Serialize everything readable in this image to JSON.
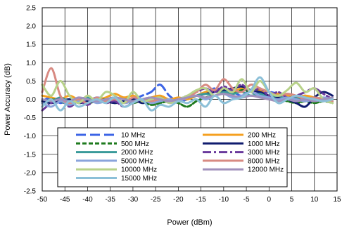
{
  "chart_data": {
    "type": "line",
    "title": "",
    "xlabel": "Power (dBm)",
    "ylabel": "Power Accuracy (dB)",
    "xlim": [
      -50,
      15
    ],
    "ylim": [
      -2.5,
      2.5
    ],
    "xticks": [
      -50,
      -45,
      -40,
      -35,
      -30,
      -25,
      -20,
      -15,
      -10,
      -5,
      0,
      5,
      10,
      15
    ],
    "yticks": [
      -2.5,
      -2.0,
      -1.5,
      -1.0,
      -0.5,
      0.0,
      0.5,
      1.0,
      1.5,
      2.0,
      2.5
    ],
    "xtick_labels": [
      "-50",
      "-45",
      "-40",
      "-35",
      "-30",
      "-25",
      "-20",
      "-15",
      "-10",
      "-5",
      "0",
      "5",
      "10",
      "15"
    ],
    "ytick_labels": [
      "-2.5",
      "-2.0",
      "-1.5",
      "-1.0",
      "-0.5",
      "0.0",
      "0.5",
      "1.0",
      "1.5",
      "2.0",
      "2.5"
    ],
    "grid": "vertical and horizontal",
    "legend_position": "lower-center, inside plot",
    "x": [
      -50,
      -48,
      -46,
      -44,
      -42,
      -40,
      -38,
      -36,
      -34,
      -32,
      -30,
      -28,
      -26,
      -24,
      -22,
      -20,
      -18,
      -16,
      -14,
      -12,
      -10,
      -8,
      -6,
      -4,
      -2,
      0,
      2,
      4,
      6,
      8,
      10,
      12,
      14
    ],
    "series": [
      {
        "name": "10 MHz",
        "color": "#3c64e6",
        "dash": "long-dash",
        "values": [
          -0.05,
          0.05,
          -0.1,
          0.0,
          -0.1,
          -0.05,
          0.05,
          0.0,
          -0.05,
          0.05,
          0.0,
          0.1,
          0.2,
          0.4,
          0.1,
          -0.05,
          0.0,
          0.1,
          0.2,
          0.3,
          0.25,
          0.2,
          0.1,
          0.25,
          0.15,
          0.2,
          0.15,
          0.1,
          0.05,
          0.1,
          0.0,
          0.05,
          0.0
        ]
      },
      {
        "name": "200 MHz",
        "color": "#f5a020",
        "dash": "solid",
        "values": [
          0.1,
          0.05,
          0.0,
          0.1,
          0.0,
          0.05,
          0.0,
          0.05,
          0.15,
          0.05,
          0.1,
          0.0,
          0.05,
          0.1,
          0.0,
          0.05,
          0.0,
          0.1,
          0.2,
          0.25,
          0.15,
          0.2,
          0.3,
          0.2,
          0.25,
          0.1,
          0.15,
          0.1,
          0.05,
          0.1,
          0.05,
          0.0,
          0.05
        ]
      },
      {
        "name": "500 MHz",
        "color": "#1e7a1e",
        "dash": "dashed",
        "values": [
          -0.1,
          0.0,
          -0.05,
          -0.15,
          -0.05,
          -0.1,
          -0.05,
          0.0,
          -0.1,
          -0.05,
          -0.1,
          -0.05,
          -0.15,
          -0.1,
          -0.05,
          -0.1,
          -0.2,
          -0.05,
          0.05,
          0.1,
          0.2,
          0.15,
          0.25,
          0.2,
          0.1,
          0.05,
          0.0,
          -0.05,
          -0.1,
          -0.05,
          -0.1,
          -0.05,
          -0.1
        ]
      },
      {
        "name": "1000 MHz",
        "color": "#101c6e",
        "dash": "solid",
        "values": [
          -0.05,
          -0.1,
          -0.05,
          0.0,
          -0.1,
          -0.05,
          0.0,
          -0.05,
          -0.1,
          -0.05,
          0.0,
          -0.1,
          -0.05,
          0.0,
          -0.05,
          0.0,
          0.05,
          0.1,
          0.15,
          0.2,
          0.25,
          0.3,
          0.35,
          0.25,
          0.2,
          0.1,
          0.05,
          0.0,
          -0.1,
          -0.2,
          0.05,
          0.2,
          0.1
        ]
      },
      {
        "name": "2000 MHz",
        "color": "#3a9a9a",
        "dash": "solid",
        "values": [
          0.0,
          -0.05,
          0.05,
          -0.05,
          0.0,
          0.05,
          -0.05,
          0.0,
          0.05,
          0.0,
          -0.05,
          0.0,
          0.05,
          0.0,
          -0.05,
          0.0,
          0.05,
          0.1,
          0.15,
          0.1,
          0.2,
          0.15,
          0.2,
          0.1,
          0.15,
          0.05,
          0.1,
          0.0,
          0.05,
          0.0,
          0.05,
          0.0,
          -0.05
        ]
      },
      {
        "name": "3000 MHz",
        "color": "#6a3a9c",
        "dash": "dash-dot",
        "values": [
          -0.3,
          -0.1,
          0.0,
          -0.2,
          -0.05,
          -0.15,
          0.0,
          -0.1,
          -0.05,
          -0.2,
          -0.1,
          0.0,
          -0.05,
          0.05,
          -0.1,
          0.0,
          0.1,
          0.2,
          0.3,
          0.2,
          0.35,
          0.25,
          0.4,
          0.2,
          0.3,
          0.1,
          0.2,
          0.05,
          0.1,
          0.2,
          0.3,
          0.15,
          0.0
        ]
      },
      {
        "name": "5000 MHz",
        "color": "#8aa4dc",
        "dash": "solid",
        "values": [
          -0.1,
          -0.2,
          -0.05,
          -0.15,
          -0.05,
          0.0,
          -0.1,
          -0.05,
          0.05,
          -0.1,
          -0.05,
          0.0,
          -0.1,
          -0.05,
          0.0,
          -0.05,
          0.05,
          0.1,
          0.0,
          0.1,
          0.15,
          0.05,
          0.1,
          0.2,
          0.1,
          0.05,
          0.0,
          0.05,
          0.0,
          -0.05,
          0.0,
          0.05,
          0.0
        ]
      },
      {
        "name": "8000 MHz",
        "color": "#d88a82",
        "dash": "solid",
        "values": [
          0.2,
          0.85,
          0.1,
          -0.1,
          0.0,
          -0.1,
          0.05,
          -0.05,
          0.0,
          -0.1,
          0.05,
          0.0,
          -0.05,
          0.0,
          -0.05,
          0.0,
          0.05,
          0.2,
          0.4,
          0.25,
          0.55,
          0.3,
          0.2,
          0.4,
          0.3,
          0.2,
          0.1,
          0.15,
          0.1,
          0.0,
          0.05,
          0.0,
          -0.05
        ]
      },
      {
        "name": "10000 MHz",
        "color": "#b8d28a",
        "dash": "solid",
        "values": [
          0.4,
          0.1,
          0.5,
          0.1,
          -0.1,
          0.1,
          -0.05,
          0.2,
          0.1,
          -0.1,
          0.2,
          -0.05,
          0.0,
          0.05,
          -0.1,
          0.0,
          0.1,
          0.25,
          0.3,
          0.1,
          0.3,
          0.2,
          0.55,
          0.2,
          0.5,
          0.2,
          0.1,
          0.25,
          0.45,
          0.2,
          0.3,
          0.0,
          -0.1
        ]
      },
      {
        "name": "12000 MHz",
        "color": "#a090bc",
        "dash": "solid",
        "values": [
          0.0,
          -0.05,
          0.0,
          -0.05,
          0.05,
          0.0,
          -0.05,
          0.0,
          0.05,
          0.0,
          -0.05,
          0.0,
          0.05,
          0.0,
          -0.05,
          0.0,
          0.05,
          0.1,
          0.05,
          0.1,
          0.15,
          0.1,
          0.05,
          0.1,
          0.05,
          0.0,
          -0.05,
          0.0,
          -0.05,
          0.0,
          -0.05,
          0.0,
          0.05
        ]
      },
      {
        "name": "15000 MHz",
        "color": "#8cc0d8",
        "dash": "solid",
        "values": [
          -0.2,
          0.0,
          -0.3,
          -0.05,
          -0.2,
          -0.1,
          0.0,
          -0.1,
          0.05,
          -0.2,
          -0.1,
          0.0,
          -0.3,
          -0.15,
          -0.2,
          -0.05,
          -0.1,
          0.0,
          -0.2,
          0.1,
          -0.1,
          0.0,
          0.05,
          0.25,
          0.6,
          0.2,
          -0.1,
          0.0,
          0.1,
          0.05,
          0.0,
          -0.05,
          0.0
        ]
      }
    ]
  }
}
